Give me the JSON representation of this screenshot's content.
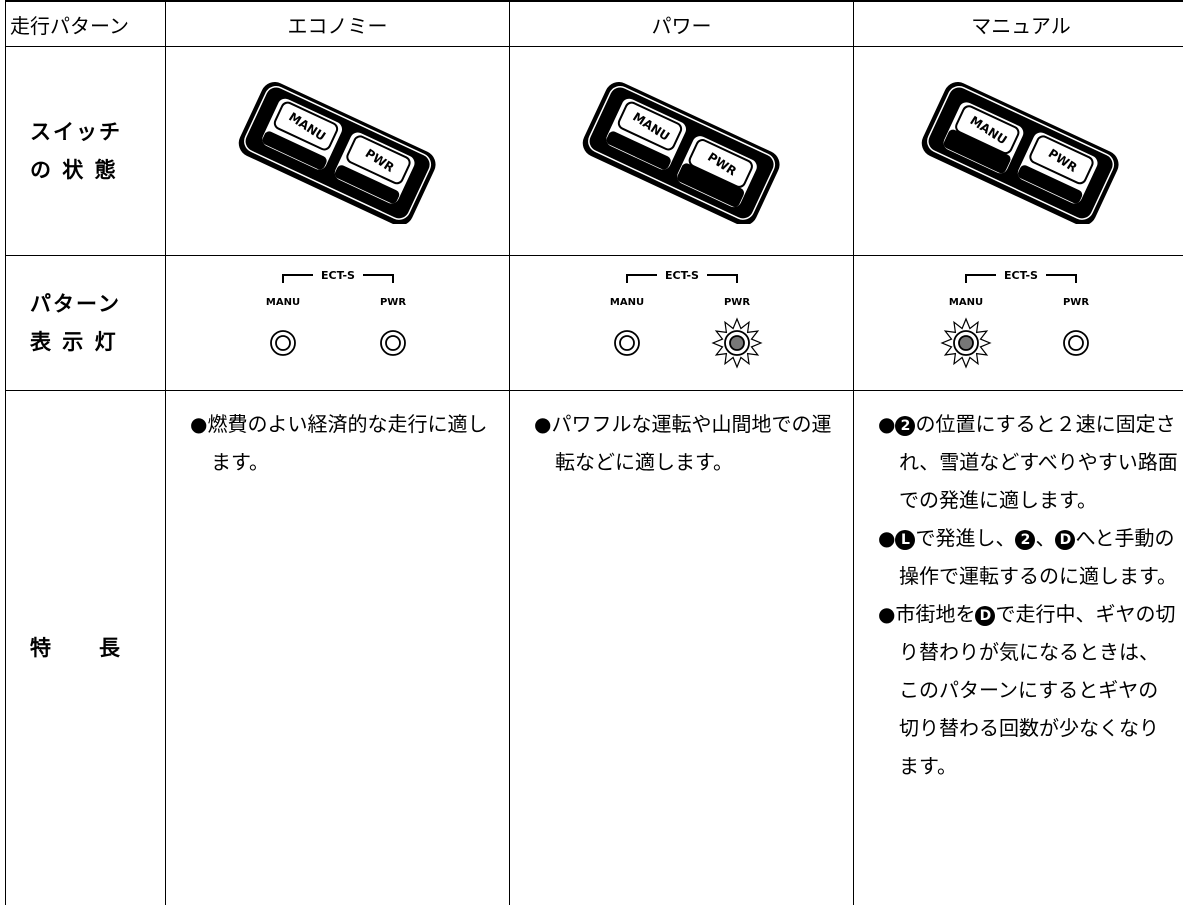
{
  "table": {
    "header": [
      "走行パターン",
      "エコノミー",
      "パワー",
      "マニュアル"
    ],
    "switch_row": {
      "label": [
        "スイッチ",
        "の 状 態"
      ],
      "cells": [
        {
          "manu": "MANU",
          "pwr": "PWR"
        },
        {
          "manu": "MANU",
          "pwr": "PWR"
        },
        {
          "manu": "MANU",
          "pwr": "PWR"
        }
      ]
    },
    "lamp_row": {
      "label": [
        "パターン",
        "表 示 灯"
      ],
      "cells": [
        {
          "group": "ECT-S",
          "manu": "MANU",
          "pwr": "PWR"
        },
        {
          "group": "ECT-S",
          "manu": "MANU",
          "pwr": "PWR"
        },
        {
          "group": "ECT-S",
          "manu": "MANU",
          "pwr": "PWR"
        }
      ]
    },
    "feature_row": {
      "label": "特　　長",
      "cells": [
        [
          [
            "●燃費のよい経済的な走行に適します。"
          ]
        ],
        [
          [
            "●パワフルな運転や山間地での運転などに適します。"
          ]
        ],
        [
          [
            "●",
            {
              "circled": "2"
            },
            "の位置にすると２速に固定され、雪道などすべりやすい路面での発進に適します。"
          ],
          [
            "●",
            {
              "circled": "L"
            },
            "で発進し、",
            {
              "circled": "2"
            },
            "、",
            {
              "circled": "D"
            },
            "へと手動の操作で運転するのに適します。"
          ],
          [
            "●市街地を",
            {
              "circled": "D"
            },
            "で走行中、ギヤの切り替わりが気になるときは、このパターンにするとギヤの切り替わる回数が少なくなります。"
          ]
        ]
      ]
    }
  }
}
